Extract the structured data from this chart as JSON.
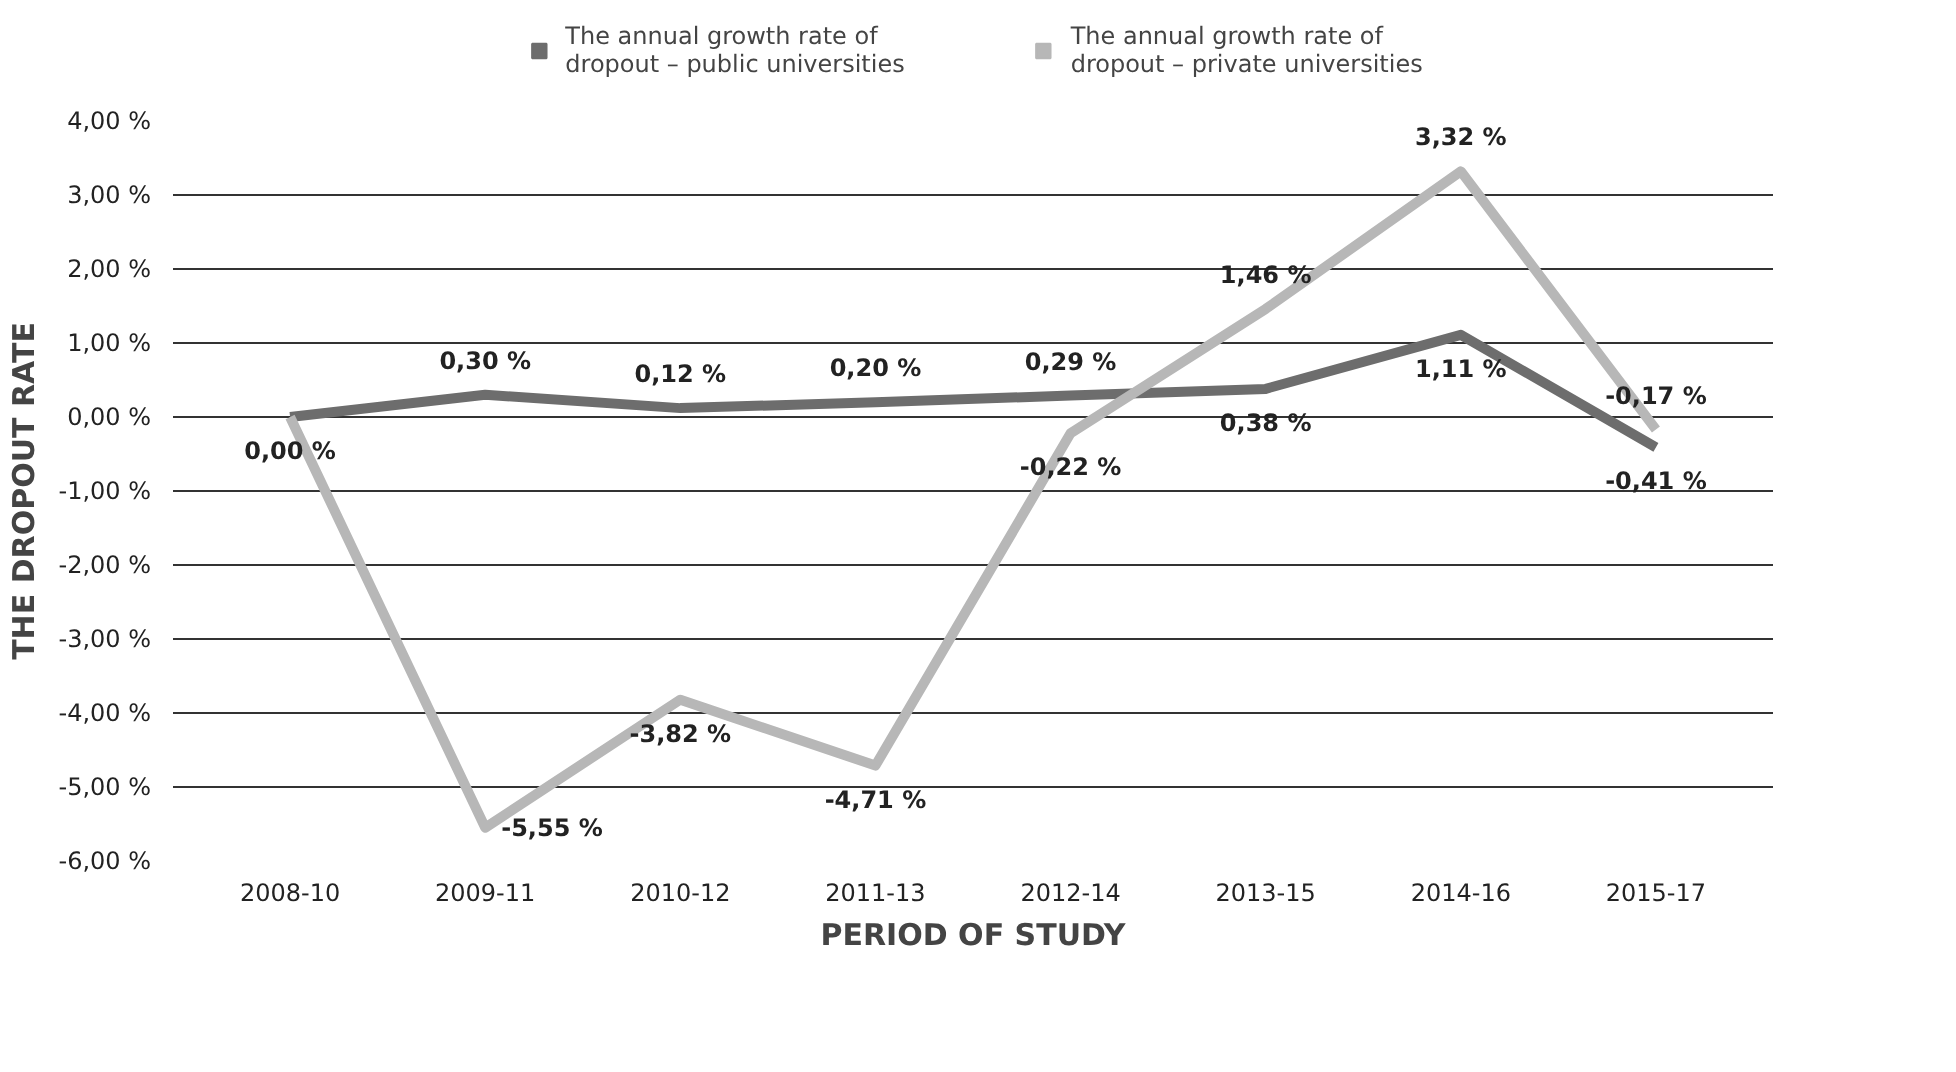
{
  "chart_data": {
    "type": "line",
    "xlabel": "PERIOD OF STUDY",
    "ylabel": "THE DROPOUT RATE",
    "categories": [
      "2008-10",
      "2009-11",
      "2010-12",
      "2011-13",
      "2012-14",
      "2013-15",
      "2014-16",
      "2015-17"
    ],
    "series": [
      {
        "name": "The annual growth rate of dropout – public universities",
        "color": "#6d6d6d",
        "values": [
          0.0,
          0.3,
          0.12,
          0.2,
          0.29,
          0.38,
          1.11,
          -0.41
        ],
        "value_labels": [
          "0,00 %",
          "0,30 %",
          "0,12 %",
          "0,20 %",
          "0,29 %",
          "0,38 %",
          "1,11 %",
          "-0,41 %"
        ]
      },
      {
        "name": "The annual growth rate of dropout – private universities",
        "color": "#b7b7b7",
        "values": [
          0.0,
          -5.55,
          -3.82,
          -4.71,
          -0.22,
          1.46,
          3.32,
          -0.17
        ],
        "value_labels": [
          null,
          "-5,55 %",
          "-3,82 %",
          "-4,71 %",
          "-0,22 %",
          "1,46 %",
          "3,32 %",
          "-0,17 %"
        ]
      }
    ],
    "ylim": [
      -6,
      4
    ],
    "yticks": [
      {
        "value": -6,
        "label": "-6,00 %"
      },
      {
        "value": -5,
        "label": "-5,00 %"
      },
      {
        "value": -4,
        "label": "-4,00 %"
      },
      {
        "value": -3,
        "label": "-3,00 %"
      },
      {
        "value": -2,
        "label": "-2,00 %"
      },
      {
        "value": -1,
        "label": "-1,00 %"
      },
      {
        "value": 0,
        "label": "0,00 %"
      },
      {
        "value": 1,
        "label": "1,00 %"
      },
      {
        "value": 2,
        "label": "2,00 %"
      },
      {
        "value": 3,
        "label": "3,00 %"
      },
      {
        "value": 4,
        "label": "4,00 %"
      }
    ],
    "grid": "y",
    "legend": "top",
    "marker": "none",
    "line_style": "solid"
  }
}
